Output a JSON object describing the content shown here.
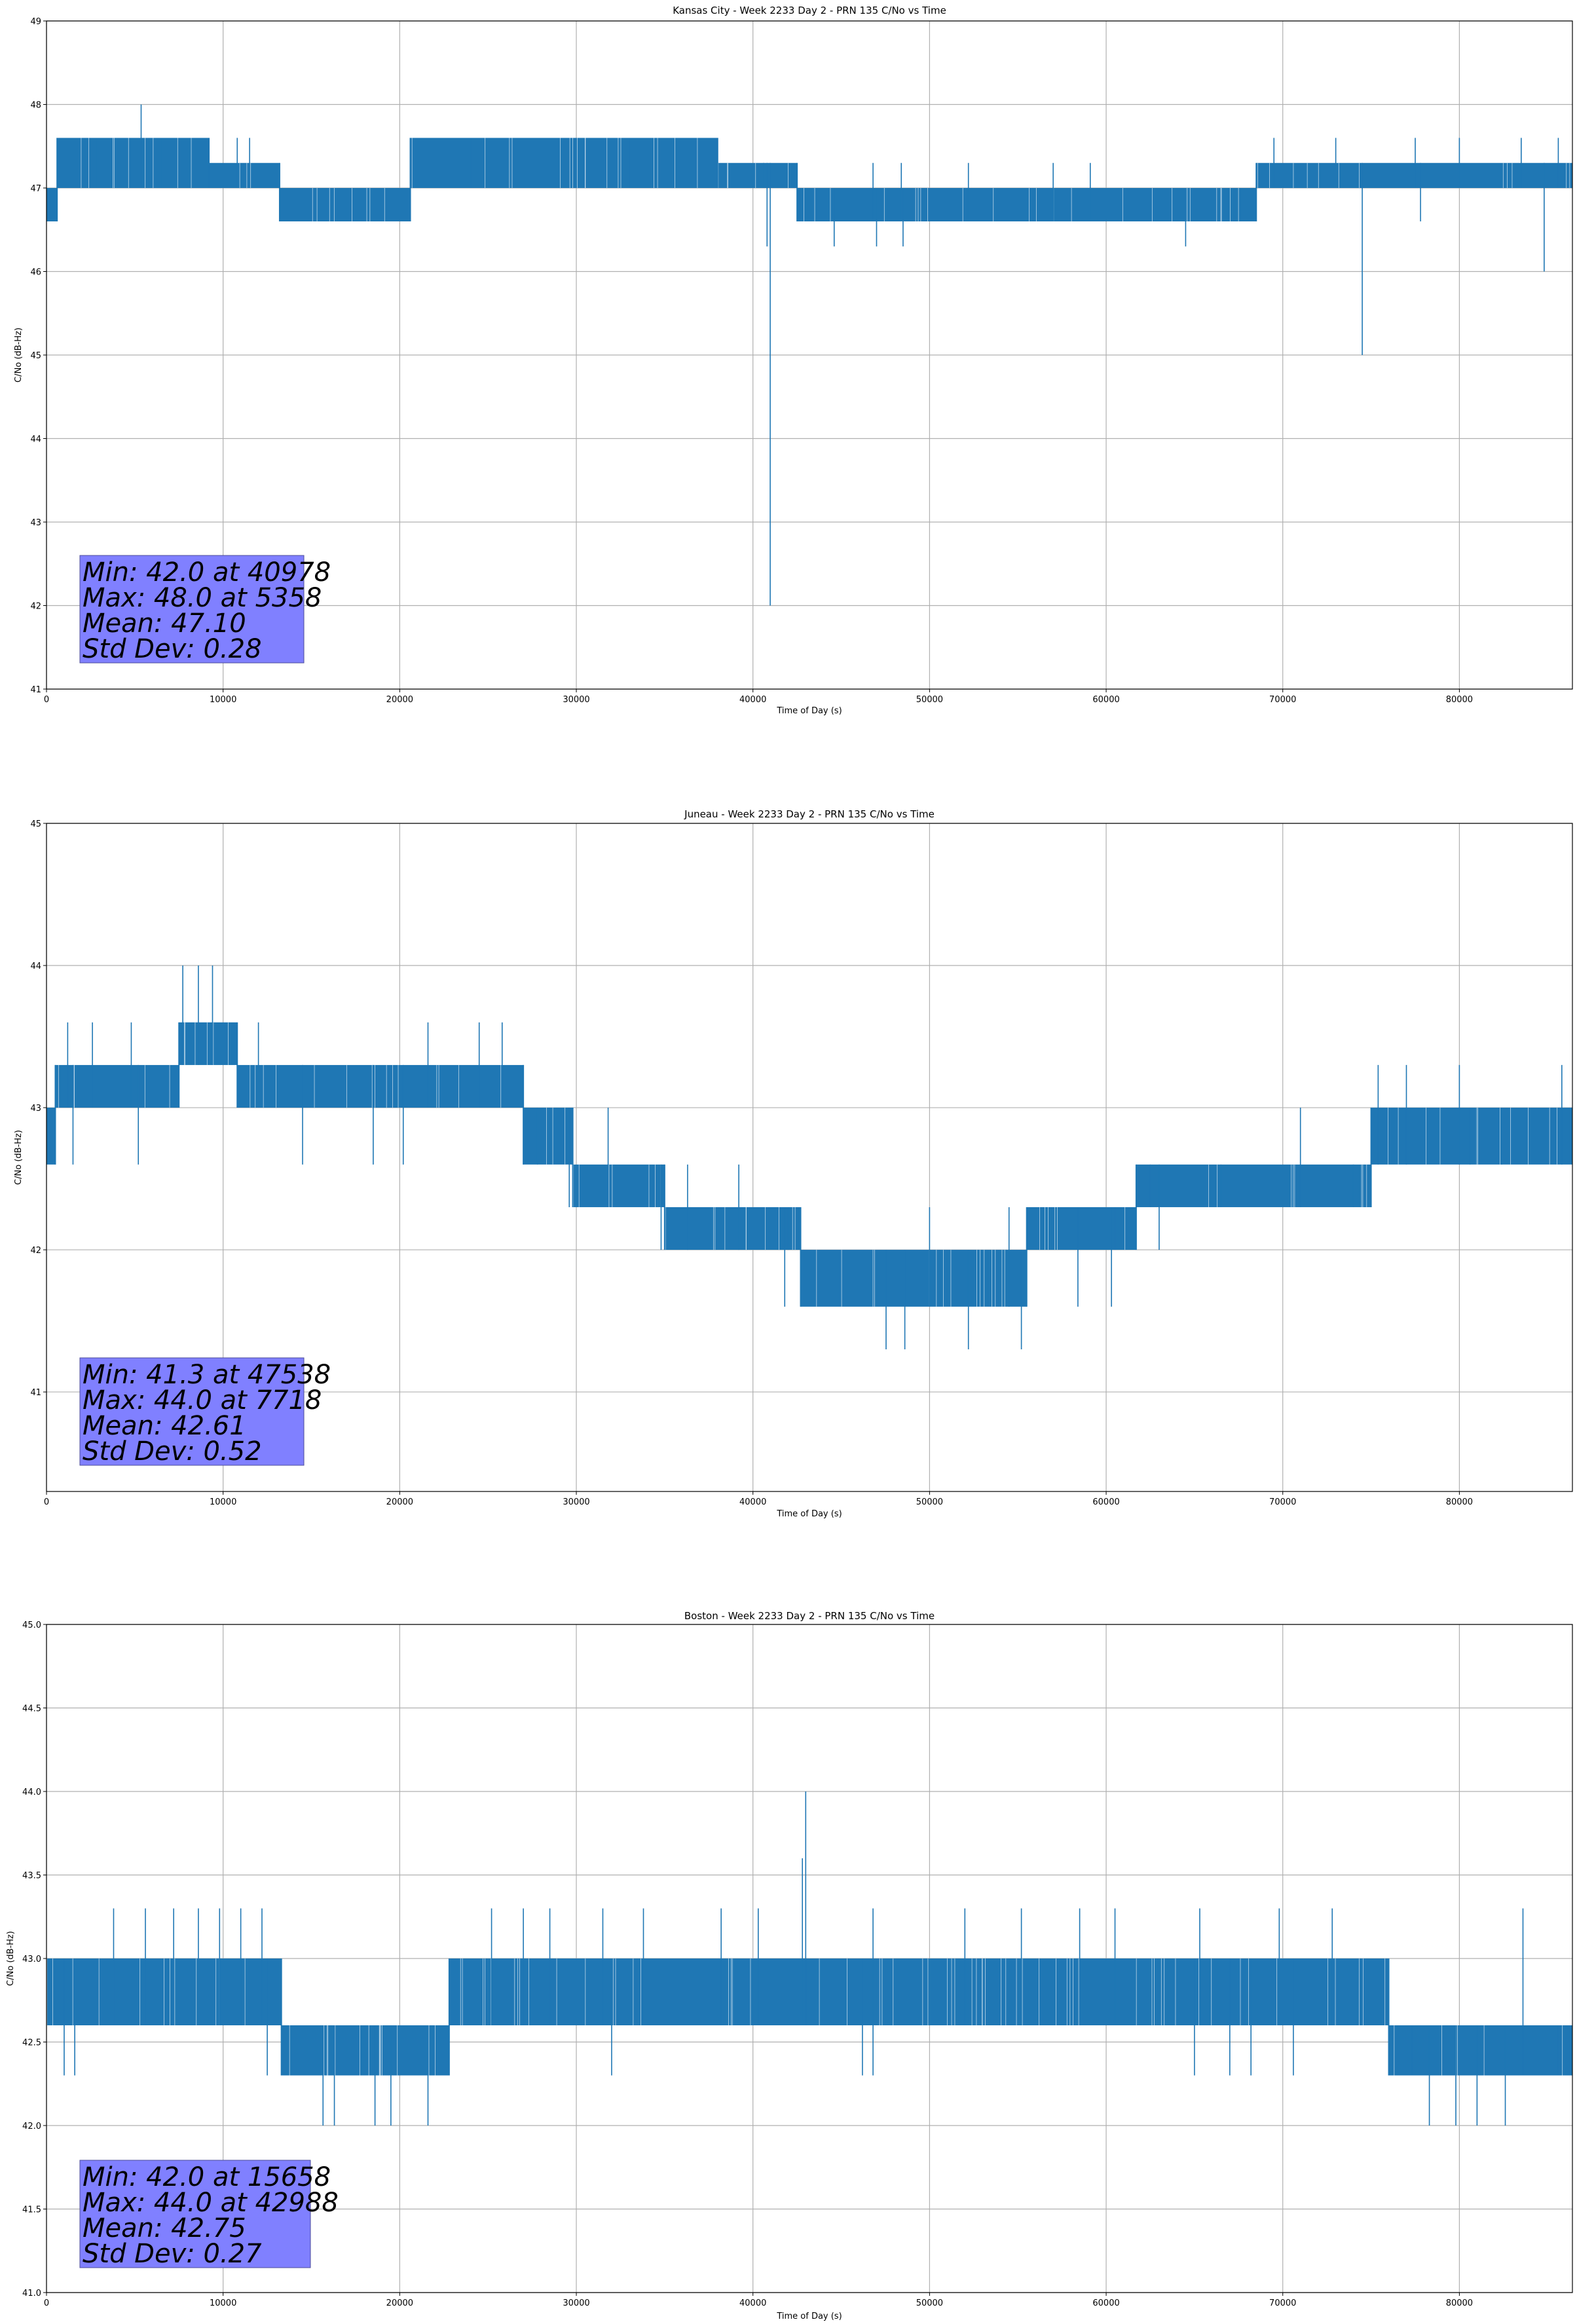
{
  "chart_data": [
    {
      "type": "line",
      "title": "Kansas City - Week 2233 Day 2 - PRN 135 C/No vs Time",
      "xlabel": "Time of Day (s)",
      "ylabel": "C/No (dB-Hz)",
      "xlim": [
        0,
        86400
      ],
      "ylim": [
        41,
        49
      ],
      "xticks": [
        0,
        10000,
        20000,
        30000,
        40000,
        50000,
        60000,
        70000,
        80000
      ],
      "xtick_labels": [
        "0",
        "10000",
        "20000",
        "30000",
        "40000",
        "50000",
        "60000",
        "70000",
        "80000"
      ],
      "yticks": [
        41,
        42,
        43,
        44,
        45,
        46,
        47,
        48,
        49
      ],
      "ytick_labels": [
        "41",
        "42",
        "43",
        "44",
        "45",
        "46",
        "47",
        "48",
        "49"
      ],
      "grid": true,
      "color": "#1f77b4",
      "series": [
        {
          "values_note_free": true,
          "bands": [
            {
              "x": [
                0,
                600
              ],
              "low": 46.6,
              "high": 47.0
            },
            {
              "x": [
                600,
                9200
              ],
              "low": 47.0,
              "high": 47.6
            },
            {
              "x": [
                9200,
                13200
              ],
              "low": 47.0,
              "high": 47.3
            },
            {
              "x": [
                13200,
                20600
              ],
              "low": 46.6,
              "high": 47.0
            },
            {
              "x": [
                20600,
                38000
              ],
              "low": 47.0,
              "high": 47.6
            },
            {
              "x": [
                38000,
                42500
              ],
              "low": 47.0,
              "high": 47.3
            },
            {
              "x": [
                42500,
                46500
              ],
              "low": 46.6,
              "high": 47.0
            },
            {
              "x": [
                46500,
                68500
              ],
              "low": 46.6,
              "high": 47.0
            },
            {
              "x": [
                68500,
                86400
              ],
              "low": 47.0,
              "high": 47.3
            }
          ],
          "spikes_up": [
            [
              5358,
              48.0
            ],
            [
              2800,
              47.6
            ],
            [
              6500,
              47.6
            ],
            [
              10800,
              47.6
            ],
            [
              11500,
              47.6
            ],
            [
              24000,
              47.6
            ],
            [
              26500,
              47.6
            ],
            [
              33000,
              47.6
            ],
            [
              36800,
              47.6
            ],
            [
              40600,
              47.3
            ],
            [
              46800,
              47.3
            ],
            [
              48400,
              47.3
            ],
            [
              52200,
              47.3
            ],
            [
              57000,
              47.3
            ],
            [
              59100,
              47.3
            ],
            [
              69500,
              47.6
            ],
            [
              73000,
              47.6
            ],
            [
              77500,
              47.6
            ],
            [
              80000,
              47.6
            ],
            [
              83500,
              47.6
            ],
            [
              85600,
              47.6
            ]
          ],
          "spikes_down": [
            [
              40978,
              42.0
            ],
            [
              40800,
              46.3
            ],
            [
              43600,
              46.6
            ],
            [
              47000,
              46.3
            ],
            [
              48500,
              46.3
            ],
            [
              64500,
              46.3
            ],
            [
              74500,
              45.0
            ],
            [
              77800,
              46.6
            ],
            [
              84800,
              46.0
            ],
            [
              44600,
              46.3
            ]
          ]
        }
      ],
      "annotation": {
        "lines": [
          "Min: 42.0 at 40978",
          "Max: 48.0 at 5358",
          "Mean: 47.10",
          "Std Dev: 0.28"
        ],
        "color": "#8080ff"
      }
    },
    {
      "type": "line",
      "title": "Juneau - Week 2233 Day 2 - PRN 135 C/No vs Time",
      "xlabel": "Time of Day (s)",
      "ylabel": "C/No (dB-Hz)",
      "xlim": [
        0,
        86400
      ],
      "ylim": [
        40.3,
        45
      ],
      "xticks": [
        0,
        10000,
        20000,
        30000,
        40000,
        50000,
        60000,
        70000,
        80000
      ],
      "xtick_labels": [
        "0",
        "10000",
        "20000",
        "30000",
        "40000",
        "50000",
        "60000",
        "70000",
        "80000"
      ],
      "yticks": [
        41,
        42,
        43,
        44,
        45
      ],
      "ytick_labels": [
        "41",
        "42",
        "43",
        "44",
        "45"
      ],
      "grid": true,
      "color": "#1f77b4",
      "series": [
        {
          "bands": [
            {
              "x": [
                0,
                500
              ],
              "low": 42.6,
              "high": 43.0
            },
            {
              "x": [
                500,
                7500
              ],
              "low": 43.0,
              "high": 43.3
            },
            {
              "x": [
                7500,
                10800
              ],
              "low": 43.3,
              "high": 43.6
            },
            {
              "x": [
                10800,
                27000
              ],
              "low": 43.0,
              "high": 43.3
            },
            {
              "x": [
                27000,
                29800
              ],
              "low": 42.6,
              "high": 43.0
            },
            {
              "x": [
                29800,
                35000
              ],
              "low": 42.3,
              "high": 42.6
            },
            {
              "x": [
                35000,
                42700
              ],
              "low": 42.0,
              "high": 42.3
            },
            {
              "x": [
                42700,
                55500
              ],
              "low": 41.6,
              "high": 42.0
            },
            {
              "x": [
                55500,
                61700
              ],
              "low": 42.0,
              "high": 42.3
            },
            {
              "x": [
                61700,
                75000
              ],
              "low": 42.3,
              "high": 42.6
            },
            {
              "x": [
                75000,
                86400
              ],
              "low": 42.6,
              "high": 43.0
            }
          ],
          "spikes_up": [
            [
              1200,
              43.6
            ],
            [
              2600,
              43.6
            ],
            [
              4800,
              43.6
            ],
            [
              7718,
              44.0
            ],
            [
              8600,
              44.0
            ],
            [
              9400,
              44.0
            ],
            [
              12000,
              43.6
            ],
            [
              21600,
              43.6
            ],
            [
              24500,
              43.6
            ],
            [
              25800,
              43.6
            ],
            [
              27800,
              43.0
            ],
            [
              31800,
              43.0
            ],
            [
              36300,
              42.6
            ],
            [
              39200,
              42.6
            ],
            [
              42000,
              42.3
            ],
            [
              50000,
              42.3
            ],
            [
              54500,
              42.3
            ],
            [
              60500,
              42.3
            ],
            [
              62500,
              42.6
            ],
            [
              66500,
              42.6
            ],
            [
              71000,
              43.0
            ],
            [
              75400,
              43.3
            ],
            [
              77000,
              43.3
            ],
            [
              80000,
              43.3
            ],
            [
              85800,
              43.3
            ]
          ],
          "spikes_down": [
            [
              1500,
              42.6
            ],
            [
              5200,
              42.6
            ],
            [
              14500,
              42.6
            ],
            [
              18500,
              42.6
            ],
            [
              20200,
              42.6
            ],
            [
              29600,
              42.3
            ],
            [
              34800,
              42.0
            ],
            [
              41800,
              41.6
            ],
            [
              47538,
              41.3
            ],
            [
              48600,
              41.3
            ],
            [
              52200,
              41.3
            ],
            [
              55200,
              41.3
            ],
            [
              58400,
              41.6
            ],
            [
              60300,
              41.6
            ],
            [
              63000,
              42.0
            ],
            [
              74000,
              42.3
            ],
            [
              80600,
              42.6
            ],
            [
              82400,
              42.6
            ]
          ]
        }
      ],
      "annotation": {
        "lines": [
          "Min: 41.3 at 47538",
          "Max: 44.0 at 7718",
          "Mean: 42.61",
          "Std Dev: 0.52"
        ],
        "color": "#8080ff"
      }
    },
    {
      "type": "line",
      "title": "Boston - Week 2233 Day 2 - PRN 135 C/No vs Time",
      "xlabel": "Time of Day (s)",
      "ylabel": "C/No (dB-Hz)",
      "xlim": [
        0,
        86400
      ],
      "ylim": [
        41.0,
        45.0
      ],
      "xticks": [
        0,
        10000,
        20000,
        30000,
        40000,
        50000,
        60000,
        70000,
        80000
      ],
      "xtick_labels": [
        "0",
        "10000",
        "20000",
        "30000",
        "40000",
        "50000",
        "60000",
        "70000",
        "80000"
      ],
      "yticks": [
        41.0,
        41.5,
        42.0,
        42.5,
        43.0,
        43.5,
        44.0,
        44.5,
        45.0
      ],
      "ytick_labels": [
        "41.0",
        "41.5",
        "42.0",
        "42.5",
        "43.0",
        "43.5",
        "44.0",
        "44.5",
        "45.0"
      ],
      "grid": true,
      "color": "#1f77b4",
      "series": [
        {
          "bands": [
            {
              "x": [
                0,
                13300
              ],
              "low": 42.6,
              "high": 43.0
            },
            {
              "x": [
                13300,
                22800
              ],
              "low": 42.3,
              "high": 42.6
            },
            {
              "x": [
                22800,
                76000
              ],
              "low": 42.6,
              "high": 43.0
            },
            {
              "x": [
                76000,
                86400
              ],
              "low": 42.3,
              "high": 42.6
            }
          ],
          "spikes_up": [
            [
              3800,
              43.3
            ],
            [
              5600,
              43.3
            ],
            [
              7200,
              43.3
            ],
            [
              8600,
              43.3
            ],
            [
              9800,
              43.3
            ],
            [
              11000,
              43.3
            ],
            [
              12200,
              43.3
            ],
            [
              23500,
              42.6
            ],
            [
              25200,
              43.3
            ],
            [
              27000,
              43.3
            ],
            [
              28500,
              43.3
            ],
            [
              31500,
              43.3
            ],
            [
              33800,
              43.3
            ],
            [
              38200,
              43.3
            ],
            [
              40300,
              43.3
            ],
            [
              42988,
              44.0
            ],
            [
              42800,
              43.6
            ],
            [
              46800,
              43.3
            ],
            [
              52000,
              43.3
            ],
            [
              55200,
              43.3
            ],
            [
              58500,
              43.3
            ],
            [
              60500,
              43.3
            ],
            [
              65300,
              43.3
            ],
            [
              69800,
              43.3
            ],
            [
              72800,
              43.3
            ],
            [
              77300,
              42.6
            ],
            [
              83600,
              43.3
            ]
          ],
          "spikes_down": [
            [
              1000,
              42.3
            ],
            [
              1600,
              42.3
            ],
            [
              12500,
              42.3
            ],
            [
              15658,
              42.0
            ],
            [
              16300,
              42.0
            ],
            [
              18600,
              42.0
            ],
            [
              19500,
              42.0
            ],
            [
              21600,
              42.0
            ],
            [
              32000,
              42.3
            ],
            [
              46200,
              42.3
            ],
            [
              46800,
              42.3
            ],
            [
              65000,
              42.3
            ],
            [
              67000,
              42.3
            ],
            [
              68200,
              42.3
            ],
            [
              70600,
              42.3
            ],
            [
              78300,
              42.0
            ],
            [
              79800,
              42.0
            ],
            [
              81000,
              42.0
            ],
            [
              82600,
              42.0
            ],
            [
              85600,
              42.3
            ]
          ]
        }
      ],
      "annotation": {
        "lines": [
          "Min: 42.0 at 15658",
          "Max: 44.0 at 42988",
          "Mean: 42.75",
          "Std Dev: 0.27"
        ],
        "color": "#8080ff"
      }
    }
  ]
}
